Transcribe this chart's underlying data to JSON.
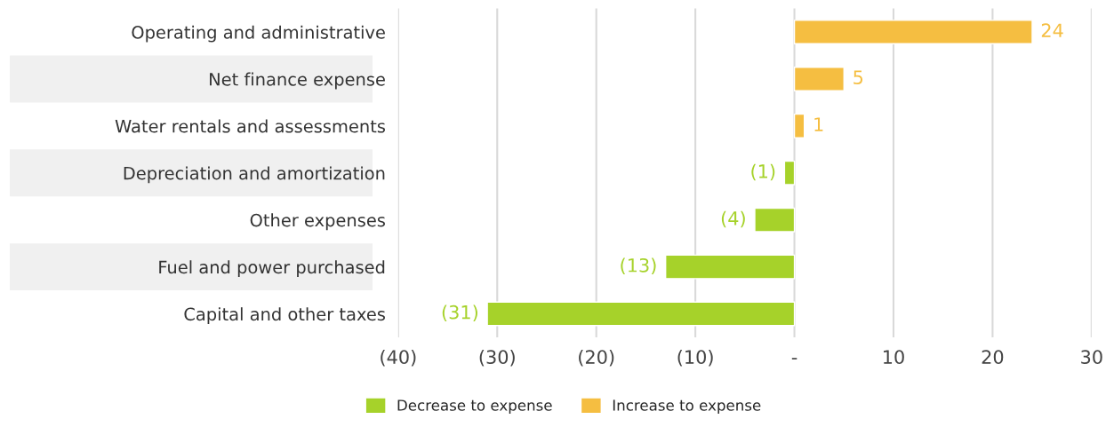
{
  "chart_data": {
    "type": "bar",
    "orientation": "horizontal",
    "categories": [
      "Operating and administrative",
      "Net finance expense",
      "Water rentals and assessments",
      "Depreciation and amortization",
      "Other expenses",
      "Fuel and power purchased",
      "Capital and other taxes"
    ],
    "series": [
      {
        "name": "Decrease to expense",
        "color": "#a6d22a",
        "values": [
          null,
          null,
          null,
          -1,
          -4,
          -13,
          -31
        ],
        "value_labels": [
          null,
          null,
          null,
          "(1)",
          "(4)",
          "(13)",
          "(31)"
        ]
      },
      {
        "name": "Increase to expense",
        "color": "#f5be41",
        "values": [
          24,
          5,
          1,
          null,
          null,
          null,
          null
        ],
        "value_labels": [
          "24",
          "5",
          "1",
          null,
          null,
          null,
          null
        ]
      }
    ],
    "xlim": [
      -40,
      30
    ],
    "xticks": [
      {
        "value": -40,
        "label": "(40)"
      },
      {
        "value": -30,
        "label": "(30)"
      },
      {
        "value": -20,
        "label": "(20)"
      },
      {
        "value": -10,
        "label": "(10)"
      },
      {
        "value": 0,
        "label": "-"
      },
      10,
      20,
      30
    ],
    "grid": "x",
    "legend": "bottom"
  }
}
